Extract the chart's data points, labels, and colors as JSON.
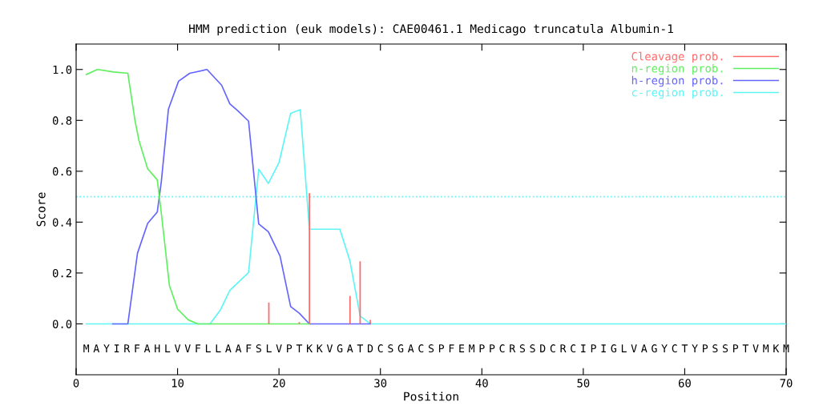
{
  "chart_data": {
    "type": "line",
    "title": "HMM prediction (euk models): CAE00461.1 Medicago truncatula Albumin-1",
    "xlabel": "Position",
    "ylabel": "Score",
    "xlim": [
      0,
      70
    ],
    "xticks": [
      0,
      10,
      20,
      30,
      40,
      50,
      60,
      70
    ],
    "ylim": [
      -0.2,
      1.1
    ],
    "yticks": [
      {
        "value": 0,
        "label": "0.0"
      },
      {
        "value": 0.2,
        "label": "0.2"
      },
      {
        "value": 0.4,
        "label": "0.4"
      },
      {
        "value": 0.6,
        "label": "0.6"
      },
      {
        "value": 0.8,
        "label": "0.8"
      },
      {
        "value": 1,
        "label": "1.0"
      }
    ],
    "grid": false,
    "legend": "top right",
    "marker": "none",
    "line_style": "solid",
    "series": [
      {
        "name": "Cleavage prob.",
        "type": "bar",
        "color": "#ff6b6b",
        "x": [
          19,
          22,
          23,
          27,
          28,
          29
        ],
        "values": [
          0.084,
          0.007,
          0.514,
          0.11,
          0.246,
          0.016
        ]
      },
      {
        "name": "n-region prob.",
        "color": "#5ef05e",
        "x": [
          1,
          2.1,
          3.7,
          5.1,
          5.8,
          6.2,
          7.05,
          8.0,
          8.4,
          9.2,
          10.0,
          11.05,
          12.0,
          23.0
        ],
        "values": [
          0.98,
          1.0,
          0.99,
          0.985,
          0.8,
          0.72,
          0.61,
          0.566,
          0.435,
          0.15,
          0.058,
          0.016,
          0,
          0
        ]
      },
      {
        "name": "h-region prob.",
        "color": "#6464ff",
        "x": [
          3.6,
          5.1,
          6.05,
          7.05,
          8.0,
          8.4,
          9.1,
          10.1,
          11.2,
          12.9,
          14.35,
          15.15,
          15.9,
          17.0,
          18.0,
          18.95,
          20.1,
          21.15,
          22.0,
          23.0,
          29.0
        ],
        "values": [
          0,
          0,
          0.278,
          0.395,
          0.44,
          0.56,
          0.844,
          0.954,
          0.985,
          1.0,
          0.938,
          0.865,
          0.839,
          0.797,
          0.393,
          0.362,
          0.267,
          0.068,
          0.042,
          0,
          0
        ]
      },
      {
        "name": "c-region prob.",
        "color": "#5ef5f5",
        "x": [
          1,
          13.2,
          14.2,
          15.15,
          17.0,
          18.0,
          18.95,
          20.0,
          21.15,
          22.1,
          23.0,
          26.0,
          27.0,
          28.0,
          29.0,
          70
        ],
        "values": [
          0,
          0,
          0.053,
          0.132,
          0.202,
          0.608,
          0.552,
          0.634,
          0.828,
          0.842,
          0.372,
          0.372,
          0.246,
          0.031,
          0,
          0
        ]
      }
    ],
    "ref_lines": [
      {
        "axis": "y",
        "value": 0.5,
        "color": "#5ef5f5",
        "line_style": "dotted"
      }
    ],
    "annotations": [
      "MAYIRFAHLVVFLLAAFSLVPTKKVGATDCSGACSPFEMPPCRSSDCRCIPIGLVAGYCTYPSSPTVMKM"
    ]
  }
}
